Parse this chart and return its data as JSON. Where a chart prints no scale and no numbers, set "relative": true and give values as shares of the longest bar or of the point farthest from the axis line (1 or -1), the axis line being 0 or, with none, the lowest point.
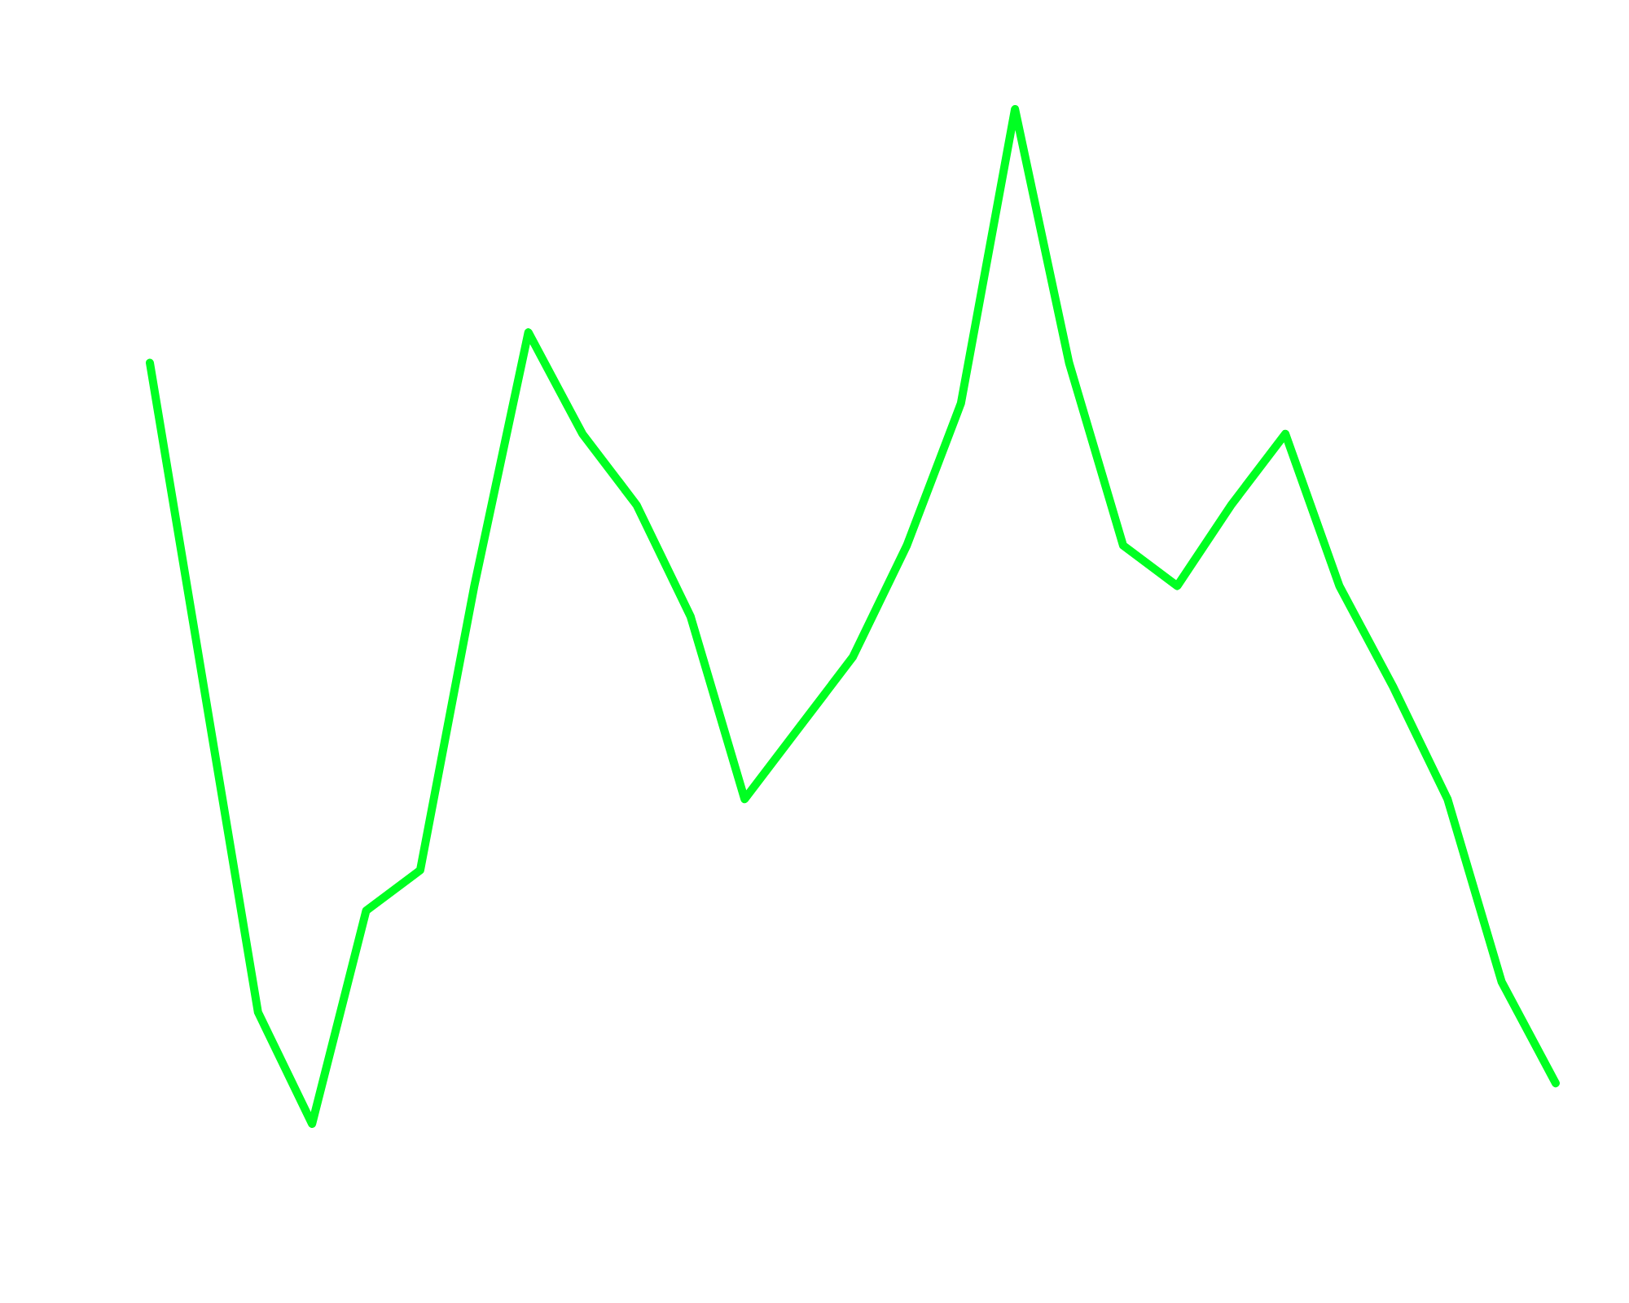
{
  "chart_data": {
    "type": "line",
    "relative": true,
    "grid": false,
    "marker": "none",
    "line_style": "solid",
    "categories": [
      null,
      null,
      null,
      null,
      null,
      null,
      null,
      null,
      null,
      null,
      null,
      null,
      null,
      null,
      null,
      null,
      null,
      null,
      null,
      null,
      null,
      null,
      null,
      null,
      null,
      null,
      null
    ],
    "series": [
      {
        "color": "#00ff22",
        "values": [
          0.75,
          0.43,
          0.11,
          0,
          0.21,
          0.25,
          0.53,
          0.78,
          0.68,
          0.61,
          0.5,
          0.32,
          0.39,
          0.46,
          0.57,
          0.71,
          1,
          0.75,
          0.57,
          0.53,
          0.61,
          0.68,
          0.53,
          0.43,
          0.32,
          0.14,
          0.04
        ]
      }
    ]
  }
}
